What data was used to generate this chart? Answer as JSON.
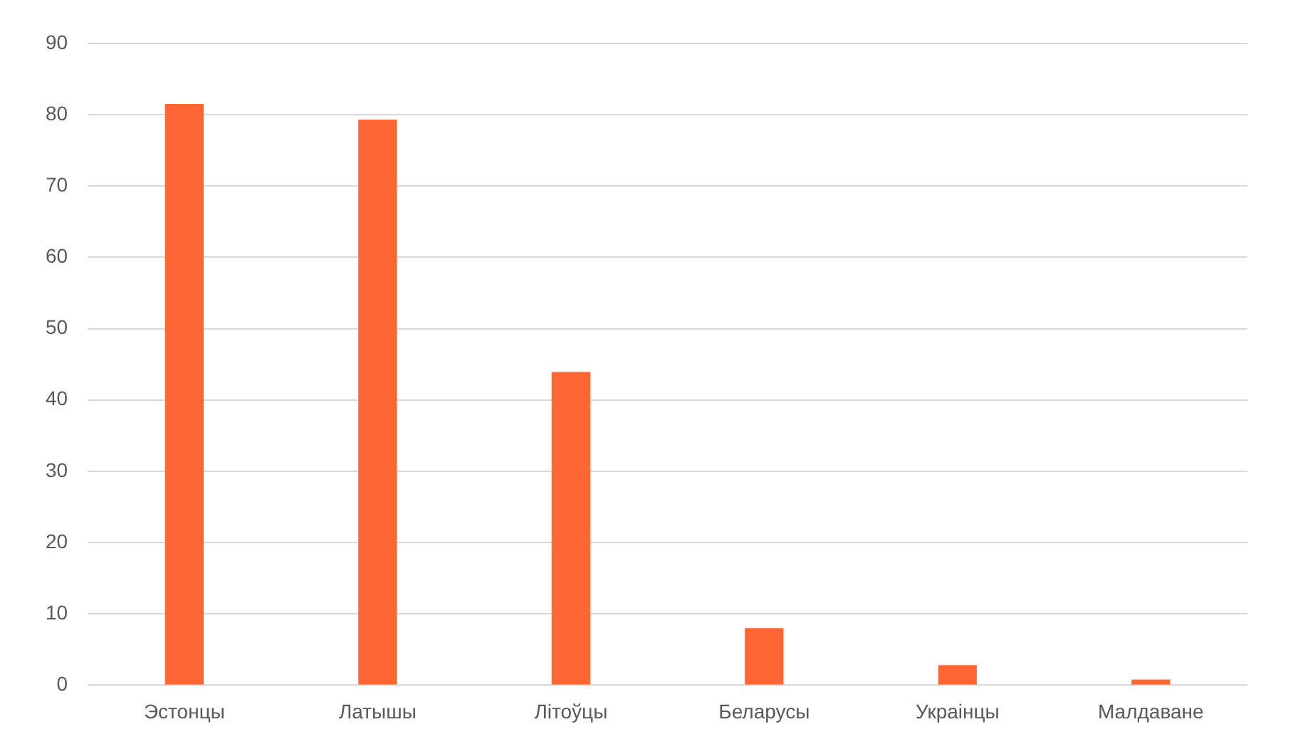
{
  "chart_data": {
    "type": "bar",
    "categories": [
      "Эстонцы",
      "Латышы",
      "Літоўцы",
      "Беларусы",
      "Украінцы",
      "Малдаване"
    ],
    "values": [
      81.5,
      79.3,
      43.9,
      8,
      2.8,
      0.8
    ],
    "color": "#ff6633",
    "ylim": [
      0,
      90
    ],
    "yticks": [
      0,
      10,
      20,
      30,
      40,
      50,
      60,
      70,
      80,
      90
    ],
    "grid": "y"
  }
}
